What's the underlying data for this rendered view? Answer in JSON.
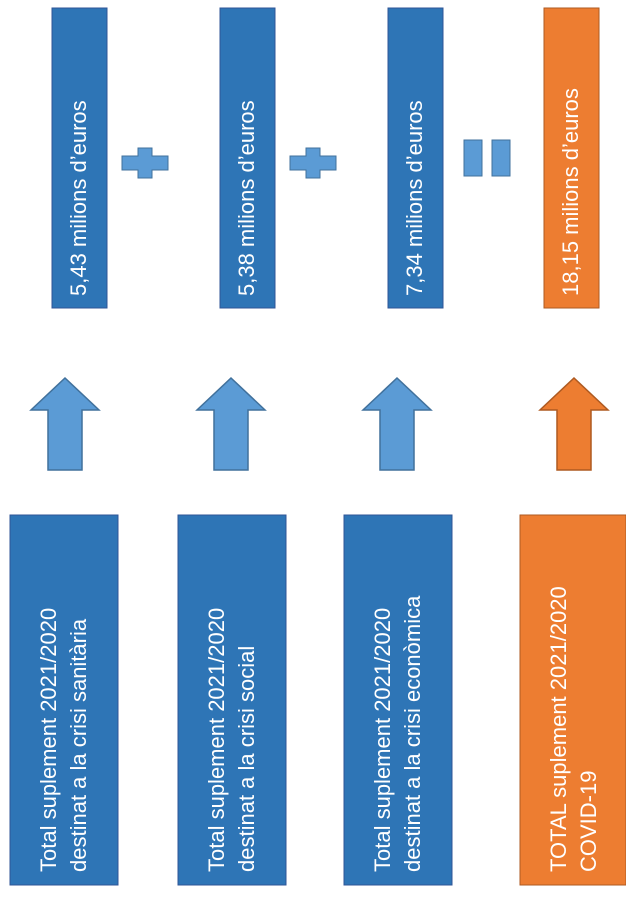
{
  "columns": [
    {
      "amount": "5,43 milions d’euros",
      "description": [
        "Total suplement 2021/2020",
        "destinat  a la crisi sanitària"
      ],
      "theme": "blue"
    },
    {
      "amount": "5,38 milions d’euros",
      "description": [
        "Total suplement 2021/2020",
        "destinat  a la crisi social"
      ],
      "theme": "blue"
    },
    {
      "amount": "7,34 milions d’euros",
      "description": [
        "Total suplement 2021/2020",
        "destinat  a la crisi econòmica"
      ],
      "theme": "blue"
    },
    {
      "amount": "18,15 milions d’euros",
      "description": [
        "TOTAL suplement 2021/2020",
        "COVID-19"
      ],
      "theme": "orange"
    }
  ]
}
